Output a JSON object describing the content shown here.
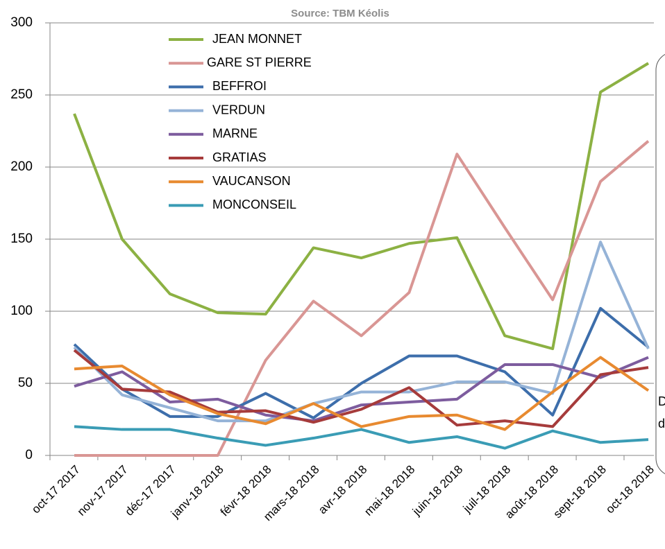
{
  "chart_data": {
    "type": "line",
    "source": "Source: TBM Kéolis",
    "categories": [
      "oct-17 2017",
      "nov-17 2017",
      "déc-17 2017",
      "janv-18 2018",
      "févr-18 2018",
      "mars-18 2018",
      "avr-18 2018",
      "mai-18 2018",
      "juin-18 2018",
      "juil-18 2018",
      "août-18 2018",
      "sept-18 2018",
      "oct-18 2018"
    ],
    "series": [
      {
        "name": "JEAN MONNET",
        "color": "#8cb143",
        "values": [
          237,
          150,
          112,
          99,
          98,
          144,
          137,
          147,
          151,
          83,
          74,
          252,
          272
        ]
      },
      {
        "name": "GARE ST PIERRE",
        "color": "#d99694",
        "values": [
          0,
          0,
          0,
          0,
          66,
          107,
          83,
          113,
          209,
          158,
          108,
          190,
          218
        ]
      },
      {
        "name": "BEFFROI",
        "color": "#3d6eab",
        "values": [
          77,
          46,
          27,
          27,
          43,
          26,
          50,
          69,
          69,
          58,
          28,
          102,
          75
        ]
      },
      {
        "name": "VERDUN",
        "color": "#95b3d7",
        "values": [
          75,
          42,
          33,
          24,
          24,
          36,
          44,
          44,
          51,
          51,
          43,
          148,
          74
        ]
      },
      {
        "name": "MARNE",
        "color": "#7d5c9e",
        "values": [
          48,
          58,
          37,
          39,
          28,
          24,
          35,
          37,
          39,
          63,
          63,
          54,
          68
        ]
      },
      {
        "name": "GRATIAS",
        "color": "#a63b3b",
        "values": [
          73,
          46,
          44,
          30,
          31,
          23,
          32,
          47,
          21,
          24,
          20,
          56,
          61
        ]
      },
      {
        "name": "VAUCANSON",
        "color": "#e88a30",
        "values": [
          60,
          62,
          42,
          29,
          22,
          36,
          20,
          27,
          28,
          18,
          44,
          68,
          45
        ]
      },
      {
        "name": "MONCONSEIL",
        "color": "#3a9cb5",
        "values": [
          20,
          18,
          18,
          12,
          7,
          12,
          18,
          9,
          13,
          5,
          17,
          9,
          11
        ]
      }
    ],
    "ylim": [
      0,
      300
    ],
    "yticks": [
      0,
      50,
      100,
      150,
      200,
      250,
      300
    ],
    "grid": true,
    "annotations": [
      "D",
      "d"
    ]
  }
}
